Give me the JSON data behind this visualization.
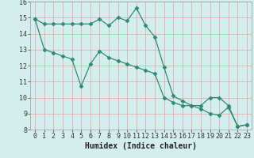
{
  "xlabel": "Humidex (Indice chaleur)",
  "line1_x": [
    0,
    1,
    2,
    3,
    4,
    5,
    6,
    7,
    8,
    9,
    10,
    11,
    12,
    13,
    14,
    15,
    16,
    17,
    18,
    19,
    20,
    21,
    22,
    23
  ],
  "line1_y": [
    14.9,
    14.6,
    14.6,
    14.6,
    14.6,
    14.6,
    14.6,
    14.9,
    14.5,
    15.0,
    14.8,
    15.6,
    14.5,
    13.8,
    11.9,
    10.1,
    9.8,
    9.5,
    9.5,
    10.0,
    10.0,
    9.5,
    8.2,
    8.3
  ],
  "line2_x": [
    0,
    1,
    2,
    3,
    4,
    5,
    6,
    7,
    8,
    9,
    10,
    11,
    12,
    13,
    14,
    15,
    16,
    17,
    18,
    19,
    20,
    21,
    22,
    23
  ],
  "line2_y": [
    14.9,
    13.0,
    12.8,
    12.6,
    12.4,
    10.7,
    12.1,
    12.9,
    12.5,
    12.3,
    12.1,
    11.9,
    11.7,
    11.5,
    10.0,
    9.7,
    9.5,
    9.5,
    9.3,
    9.0,
    8.9,
    9.4,
    8.2,
    8.3
  ],
  "line_color": "#2d8b72",
  "bg_color": "#d4eeee",
  "grid_color": "#e8a0a0",
  "spine_color": "#999999",
  "tick_color": "#333333",
  "xlabel_color": "#222222",
  "ylim": [
    8,
    16
  ],
  "xlim_min": -0.5,
  "xlim_max": 23.5,
  "yticks": [
    8,
    9,
    10,
    11,
    12,
    13,
    14,
    15,
    16
  ],
  "xticks": [
    0,
    1,
    2,
    3,
    4,
    5,
    6,
    7,
    8,
    9,
    10,
    11,
    12,
    13,
    14,
    15,
    16,
    17,
    18,
    19,
    20,
    21,
    22,
    23
  ],
  "marker": "D",
  "markersize": 2.5,
  "linewidth": 0.9,
  "tick_fontsize": 6.0,
  "xlabel_fontsize": 7.0
}
